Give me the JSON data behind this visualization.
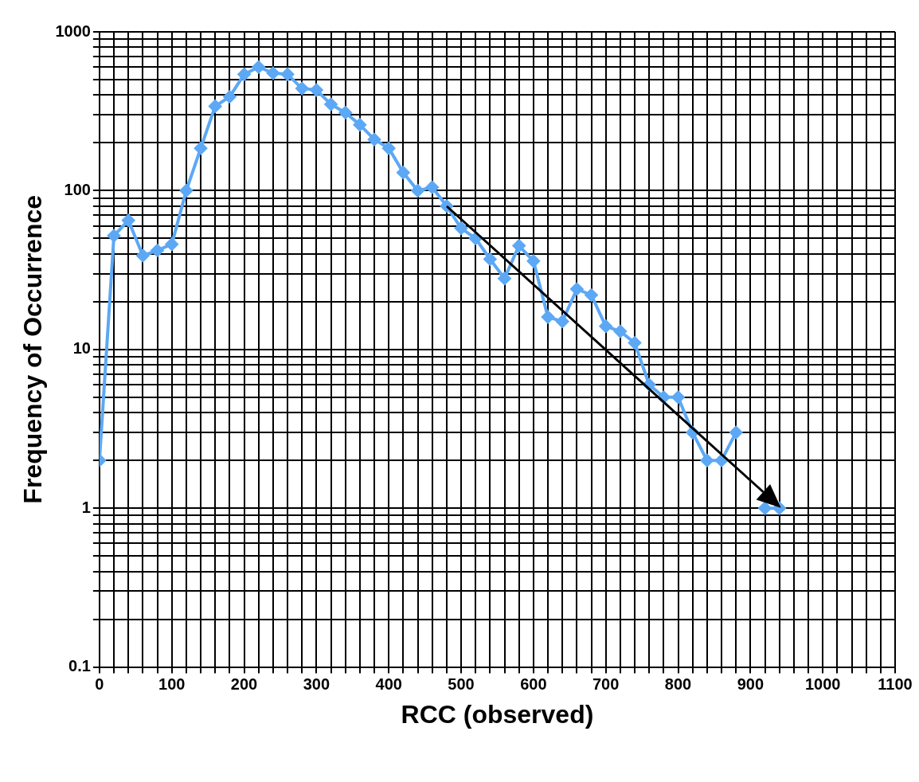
{
  "chart_data": {
    "type": "line",
    "xlabel": "RCC (observed)",
    "ylabel": "Frequency of Occurrence",
    "log": "y",
    "grid": true,
    "marker": "diamond",
    "line_style": "solid",
    "legend": false,
    "x": [
      0,
      20,
      40,
      60,
      80,
      100,
      120,
      140,
      160,
      180,
      200,
      220,
      240,
      260,
      280,
      300,
      320,
      340,
      360,
      380,
      400,
      420,
      440,
      460,
      480,
      500,
      520,
      540,
      560,
      580,
      600,
      620,
      640,
      660,
      680,
      700,
      720,
      740,
      760,
      780,
      800,
      820,
      840,
      860,
      880,
      900,
      920,
      940
    ],
    "series": [
      {
        "color": "#5ca8f5",
        "values": [
          2,
          52,
          65,
          39,
          42,
          46,
          100,
          185,
          340,
          390,
          540,
          600,
          550,
          540,
          440,
          430,
          350,
          310,
          260,
          210,
          185,
          130,
          100,
          105,
          80,
          58,
          50,
          37,
          28,
          45,
          36,
          16,
          15,
          24,
          22,
          14,
          13,
          11,
          6,
          5,
          5,
          3,
          2,
          2,
          3,
          null,
          1,
          1
        ]
      }
    ],
    "xlim": [
      0,
      1100
    ],
    "xticks": [
      0,
      {
        "value": 20,
        "label": null
      },
      {
        "value": 40,
        "label": null
      },
      {
        "value": 60,
        "label": null
      },
      {
        "value": 80,
        "label": null
      },
      100,
      {
        "value": 120,
        "label": null
      },
      {
        "value": 140,
        "label": null
      },
      {
        "value": 160,
        "label": null
      },
      {
        "value": 180,
        "label": null
      },
      200,
      {
        "value": 220,
        "label": null
      },
      {
        "value": 240,
        "label": null
      },
      {
        "value": 260,
        "label": null
      },
      {
        "value": 280,
        "label": null
      },
      300,
      {
        "value": 320,
        "label": null
      },
      {
        "value": 340,
        "label": null
      },
      {
        "value": 360,
        "label": null
      },
      {
        "value": 380,
        "label": null
      },
      400,
      {
        "value": 420,
        "label": null
      },
      {
        "value": 440,
        "label": null
      },
      {
        "value": 460,
        "label": null
      },
      {
        "value": 480,
        "label": null
      },
      500,
      {
        "value": 520,
        "label": null
      },
      {
        "value": 540,
        "label": null
      },
      {
        "value": 560,
        "label": null
      },
      {
        "value": 580,
        "label": null
      },
      600,
      {
        "value": 620,
        "label": null
      },
      {
        "value": 640,
        "label": null
      },
      {
        "value": 660,
        "label": null
      },
      {
        "value": 680,
        "label": null
      },
      700,
      {
        "value": 720,
        "label": null
      },
      {
        "value": 740,
        "label": null
      },
      {
        "value": 760,
        "label": null
      },
      {
        "value": 780,
        "label": null
      },
      800,
      {
        "value": 820,
        "label": null
      },
      {
        "value": 840,
        "label": null
      },
      {
        "value": 860,
        "label": null
      },
      {
        "value": 880,
        "label": null
      },
      900,
      {
        "value": 920,
        "label": null
      },
      {
        "value": 940,
        "label": null
      },
      {
        "value": 960,
        "label": null
      },
      {
        "value": 980,
        "label": null
      },
      1000,
      {
        "value": 1020,
        "label": null
      },
      {
        "value": 1040,
        "label": null
      },
      {
        "value": 1060,
        "label": null
      },
      {
        "value": 1080,
        "label": null
      },
      1100
    ],
    "ylim": [
      0.1,
      1000
    ],
    "yticks": [
      0.1,
      {
        "value": 0.2,
        "label": null
      },
      {
        "value": 0.3,
        "label": null
      },
      {
        "value": 0.4,
        "label": null
      },
      {
        "value": 0.5,
        "label": null
      },
      {
        "value": 0.6,
        "label": null
      },
      {
        "value": 0.7,
        "label": null
      },
      {
        "value": 0.8,
        "label": null
      },
      {
        "value": 0.9,
        "label": null
      },
      1,
      {
        "value": 2,
        "label": null
      },
      {
        "value": 3,
        "label": null
      },
      {
        "value": 4,
        "label": null
      },
      {
        "value": 5,
        "label": null
      },
      {
        "value": 6,
        "label": null
      },
      {
        "value": 7,
        "label": null
      },
      {
        "value": 8,
        "label": null
      },
      {
        "value": 9,
        "label": null
      },
      10,
      {
        "value": 20,
        "label": null
      },
      {
        "value": 30,
        "label": null
      },
      {
        "value": 40,
        "label": null
      },
      {
        "value": 50,
        "label": null
      },
      {
        "value": 60,
        "label": null
      },
      {
        "value": 70,
        "label": null
      },
      {
        "value": 80,
        "label": null
      },
      {
        "value": 90,
        "label": null
      },
      100,
      {
        "value": 200,
        "label": null
      },
      {
        "value": 300,
        "label": null
      },
      {
        "value": 400,
        "label": null
      },
      {
        "value": 500,
        "label": null
      },
      {
        "value": 600,
        "label": null
      },
      {
        "value": 700,
        "label": null
      },
      {
        "value": 800,
        "label": null
      },
      {
        "value": 900,
        "label": null
      },
      1000
    ]
  }
}
